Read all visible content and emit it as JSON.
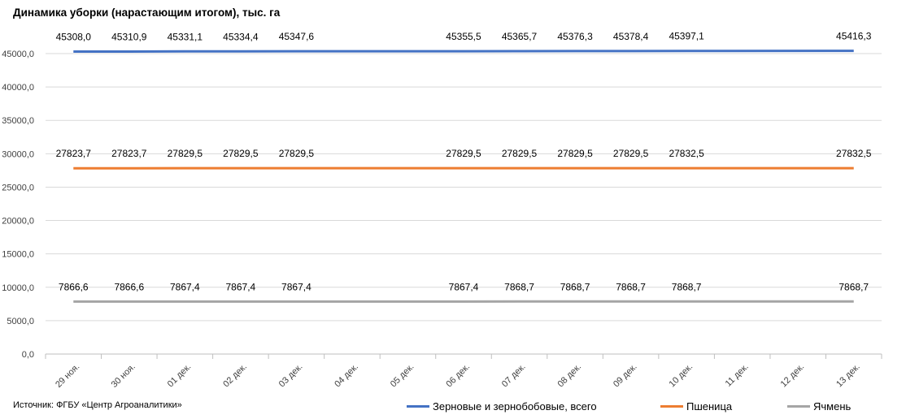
{
  "chart_data": {
    "type": "line",
    "title": "Динамика уборки (нарастающим итогом), тыс. га",
    "source": "Источник: ФГБУ «Центр Агроаналитики»",
    "xlabel": "",
    "ylabel": "",
    "ylim": [
      0,
      45000
    ],
    "y_ticks": [
      "0,0",
      "5000,0",
      "10000,0",
      "15000,0",
      "20000,0",
      "25000,0",
      "30000,0",
      "35000,0",
      "40000,0",
      "45000,0"
    ],
    "y_tick_values": [
      0,
      5000,
      10000,
      15000,
      20000,
      25000,
      30000,
      35000,
      40000,
      45000
    ],
    "categories": [
      "29 ноя.",
      "30 ноя.",
      "01 дек.",
      "02 дек.",
      "03 дек.",
      "04 дек.",
      "05 дек.",
      "06 дек.",
      "07 дек.",
      "08 дек.",
      "09 дек.",
      "10 дек.",
      "11 дек.",
      "12 дек.",
      "13 дек."
    ],
    "grid": true,
    "legend_position": "bottom-right",
    "series": [
      {
        "name": "Зерновые и зернобобовые, всего",
        "color": "#4472C4",
        "values": [
          45308.0,
          45310.9,
          45331.1,
          45334.4,
          45347.6,
          null,
          null,
          45355.5,
          45365.7,
          45376.3,
          45378.4,
          45397.1,
          null,
          null,
          45416.3
        ],
        "labels": [
          "45308,0",
          "45310,9",
          "45331,1",
          "45334,4",
          "45347,6",
          "",
          "",
          "45355,5",
          "45365,7",
          "45376,3",
          "45378,4",
          "45397,1",
          "",
          "",
          "45416,3"
        ]
      },
      {
        "name": "Пшеница",
        "color": "#ED7D31",
        "values": [
          27823.7,
          27823.7,
          27829.5,
          27829.5,
          27829.5,
          null,
          null,
          27829.5,
          27829.5,
          27829.5,
          27829.5,
          27832.5,
          null,
          null,
          27832.5
        ],
        "labels": [
          "27823,7",
          "27823,7",
          "27829,5",
          "27829,5",
          "27829,5",
          "",
          "",
          "27829,5",
          "27829,5",
          "27829,5",
          "27829,5",
          "27832,5",
          "",
          "",
          "27832,5"
        ]
      },
      {
        "name": "Ячмень",
        "color": "#A5A5A5",
        "values": [
          7866.6,
          7866.6,
          7867.4,
          7867.4,
          7867.4,
          null,
          null,
          7867.4,
          7868.7,
          7868.7,
          7868.7,
          7868.7,
          null,
          null,
          7868.7
        ],
        "labels": [
          "7866,6",
          "7866,6",
          "7867,4",
          "7867,4",
          "7867,4",
          "",
          "",
          "7867,4",
          "7868,7",
          "7868,7",
          "7868,7",
          "7868,7",
          "",
          "",
          "7868,7"
        ]
      }
    ]
  }
}
